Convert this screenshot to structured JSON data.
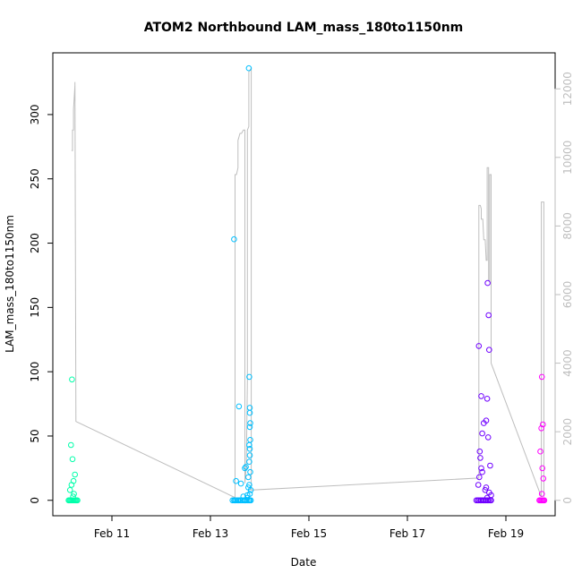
{
  "chart_data": {
    "type": "scatter",
    "title": "ATOM2 Northbound LAM_mass_180to1150nm",
    "xlabel": "Date",
    "ylabel": "LAM_mass_180to1150nm",
    "x_ticks": [
      "Feb 11",
      "Feb 13",
      "Feb 15",
      "Feb 17",
      "Feb 19"
    ],
    "x_tick_values": [
      11,
      13,
      15,
      17,
      19
    ],
    "xlim": [
      9.8,
      20.0
    ],
    "ylim": [
      -12,
      348
    ],
    "y_ticks": [
      0,
      50,
      100,
      150,
      200,
      250,
      300
    ],
    "y2_ticks": [
      0,
      2000,
      4000,
      6000,
      8000,
      10000,
      12000
    ],
    "y2lim": [
      -450,
      13050
    ],
    "colors": {
      "axis": "#000000",
      "right_axis": "#bebebe",
      "line": "#bebebe"
    },
    "secondary_line": [
      [
        10.18,
        10200
      ],
      [
        10.2,
        10200
      ],
      [
        10.2,
        10800
      ],
      [
        10.22,
        10800
      ],
      [
        10.22,
        11400
      ],
      [
        10.25,
        12100
      ],
      [
        10.25,
        12200
      ],
      [
        10.27,
        2300
      ],
      [
        13.5,
        80
      ],
      [
        13.5,
        9500
      ],
      [
        13.53,
        9500
      ],
      [
        13.56,
        9700
      ],
      [
        13.56,
        10500
      ],
      [
        13.6,
        10700
      ],
      [
        13.63,
        10700
      ],
      [
        13.67,
        10800
      ],
      [
        13.7,
        10800
      ],
      [
        13.7,
        500
      ],
      [
        13.73,
        1000
      ],
      [
        13.75,
        3500
      ],
      [
        13.75,
        10800
      ],
      [
        13.78,
        10900
      ],
      [
        13.78,
        12500
      ],
      [
        13.83,
        12600
      ],
      [
        13.83,
        300
      ],
      [
        18.45,
        650
      ],
      [
        18.45,
        8600
      ],
      [
        18.48,
        8600
      ],
      [
        18.5,
        8500
      ],
      [
        18.5,
        8200
      ],
      [
        18.53,
        8200
      ],
      [
        18.55,
        7600
      ],
      [
        18.58,
        7600
      ],
      [
        18.6,
        7000
      ],
      [
        18.62,
        7000
      ],
      [
        18.62,
        9700
      ],
      [
        18.65,
        9700
      ],
      [
        18.65,
        6400
      ],
      [
        18.67,
        6400
      ],
      [
        18.67,
        9500
      ],
      [
        18.7,
        9500
      ],
      [
        18.7,
        4000
      ],
      [
        19.72,
        100
      ],
      [
        19.72,
        8700
      ],
      [
        19.77,
        8700
      ],
      [
        19.77,
        100
      ]
    ],
    "series": [
      {
        "color": "#00ffaa",
        "x": [
          10.12,
          10.14,
          10.16,
          10.18,
          10.2,
          10.22,
          10.24,
          10.26,
          10.28,
          10.3,
          10.15,
          10.18,
          10.22,
          10.25,
          10.2,
          10.17,
          10.19,
          10.23,
          10.21
        ],
        "y": [
          0,
          0,
          0,
          0,
          0,
          0,
          0,
          0,
          0,
          0,
          8,
          12,
          15,
          20,
          32,
          43,
          94,
          5,
          3
        ]
      },
      {
        "color": "#00bfff",
        "x": [
          13.45,
          13.48,
          13.5,
          13.52,
          13.55,
          13.57,
          13.6,
          13.62,
          13.65,
          13.68,
          13.7,
          13.72,
          13.75,
          13.78,
          13.8,
          13.82,
          13.48,
          13.52,
          13.58,
          13.62,
          13.67,
          13.7,
          13.72,
          13.75,
          13.77,
          13.79,
          13.8,
          13.81,
          13.8,
          13.8,
          13.79,
          13.81,
          13.8,
          13.78,
          13.8,
          13.79,
          13.81,
          13.77,
          13.79,
          13.82,
          13.8,
          13.75
        ],
        "y": [
          0,
          0,
          0,
          0,
          0,
          0,
          0,
          0,
          0,
          0,
          0,
          0,
          0,
          0,
          0,
          0,
          203,
          15,
          73,
          13,
          3,
          25,
          26,
          4,
          10,
          43,
          57,
          60,
          68,
          72,
          96,
          47,
          40,
          336,
          35,
          30,
          22,
          18,
          12,
          8,
          5,
          2
        ]
      },
      {
        "color": "#7000ff",
        "x": [
          18.4,
          18.43,
          18.45,
          18.48,
          18.5,
          18.53,
          18.55,
          18.58,
          18.6,
          18.63,
          18.65,
          18.68,
          18.7,
          18.45,
          18.5,
          18.52,
          18.47,
          18.55,
          18.6,
          18.63,
          18.65,
          18.66,
          18.62,
          18.64,
          18.68,
          18.48,
          18.5,
          18.52,
          18.46,
          18.44,
          18.6,
          18.58,
          18.66,
          18.7,
          18.62
        ],
        "y": [
          0,
          0,
          0,
          0,
          0,
          0,
          0,
          0,
          0,
          0,
          0,
          0,
          0,
          120,
          81,
          52,
          38,
          60,
          62,
          169,
          144,
          117,
          79,
          49,
          27,
          33,
          25,
          22,
          18,
          12,
          10,
          8,
          6,
          4,
          2
        ]
      },
      {
        "color": "#ff00ff",
        "x": [
          19.68,
          19.7,
          19.72,
          19.74,
          19.76,
          19.78,
          19.73,
          19.75,
          19.72,
          19.7,
          19.74,
          19.76,
          19.73
        ],
        "y": [
          0,
          0,
          0,
          0,
          0,
          0,
          96,
          59,
          56,
          38,
          25,
          17,
          5
        ]
      }
    ]
  }
}
